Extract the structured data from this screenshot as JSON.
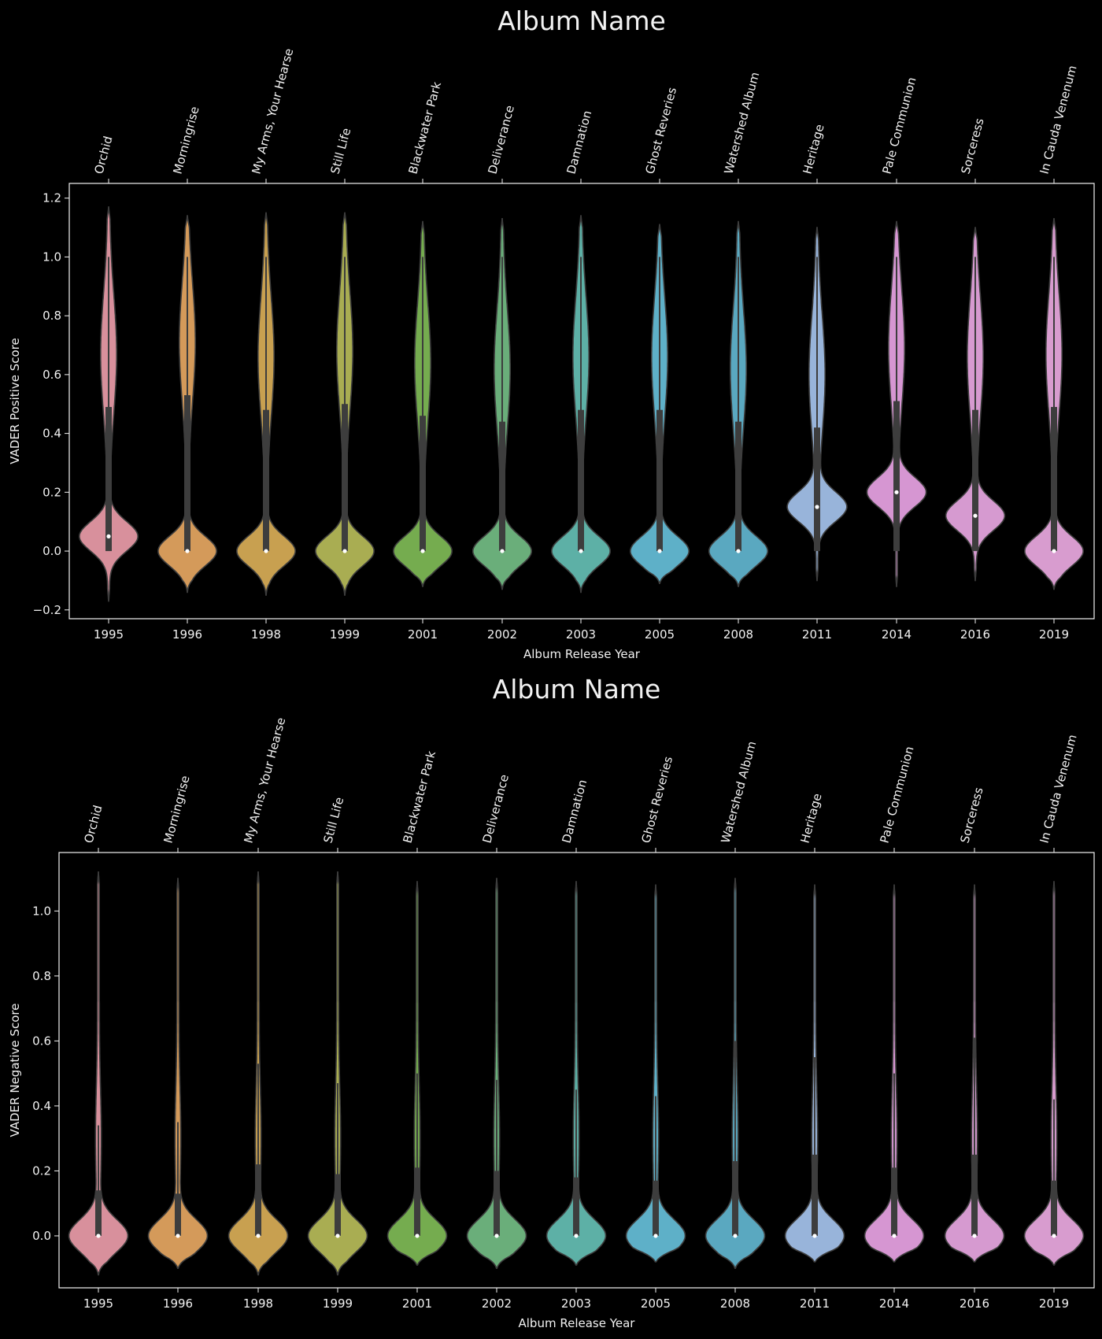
{
  "chart_data": [
    {
      "type": "violin",
      "title": "Album Name",
      "xlabel": "Album Release Year",
      "ylabel": "VADER Positive Score",
      "ylim": [
        -0.23,
        1.25
      ],
      "yticks": [
        -0.2,
        0.0,
        0.2,
        0.4,
        0.6,
        0.8,
        1.0,
        1.2
      ],
      "ytick_labels": [
        "−0.2",
        "0.0",
        "0.2",
        "0.4",
        "0.6",
        "0.8",
        "1.0",
        "1.2"
      ],
      "categories": [
        "1995",
        "1996",
        "1998",
        "1999",
        "2001",
        "2002",
        "2003",
        "2005",
        "2008",
        "2011",
        "2014",
        "2016",
        "2019"
      ],
      "top_labels": [
        "Orchid",
        "Morningrise",
        "My Arms, Your Hearse",
        "Still Life",
        "Blackwater Park",
        "Deliverance",
        "Damnation",
        "Ghost Reveries",
        "Watershed Album",
        "Heritage",
        "Pale Communion",
        "Sorceress",
        "In Cauda Venenum"
      ],
      "colors": [
        "#d8909c",
        "#d49a5a",
        "#c8a050",
        "#a9ad52",
        "#75ac4f",
        "#6aae7a",
        "#5db0a6",
        "#5eb0c8",
        "#5aa8c0",
        "#98b4da",
        "#d696d2",
        "#d69ad0",
        "#d89ccf"
      ],
      "series": [
        {
          "median": 0.05,
          "q1": 0.0,
          "q3": 0.49,
          "min": -0.17,
          "max": 1.17,
          "whisker": 1.0
        },
        {
          "median": 0.0,
          "q1": 0.0,
          "q3": 0.53,
          "min": -0.14,
          "max": 1.14,
          "whisker": 1.0
        },
        {
          "median": 0.0,
          "q1": 0.0,
          "q3": 0.48,
          "min": -0.15,
          "max": 1.15,
          "whisker": 1.0
        },
        {
          "median": 0.0,
          "q1": 0.0,
          "q3": 0.5,
          "min": -0.15,
          "max": 1.15,
          "whisker": 1.0
        },
        {
          "median": 0.0,
          "q1": 0.0,
          "q3": 0.46,
          "min": -0.12,
          "max": 1.12,
          "whisker": 1.0
        },
        {
          "median": 0.0,
          "q1": 0.0,
          "q3": 0.44,
          "min": -0.13,
          "max": 1.13,
          "whisker": 1.0
        },
        {
          "median": 0.0,
          "q1": 0.0,
          "q3": 0.48,
          "min": -0.14,
          "max": 1.14,
          "whisker": 1.0
        },
        {
          "median": 0.0,
          "q1": 0.0,
          "q3": 0.48,
          "min": -0.11,
          "max": 1.11,
          "whisker": 1.0
        },
        {
          "median": 0.0,
          "q1": 0.0,
          "q3": 0.44,
          "min": -0.12,
          "max": 1.12,
          "whisker": 1.0
        },
        {
          "median": 0.15,
          "q1": 0.0,
          "q3": 0.42,
          "min": -0.1,
          "max": 1.1,
          "whisker": 1.0
        },
        {
          "median": 0.2,
          "q1": 0.0,
          "q3": 0.51,
          "min": -0.12,
          "max": 1.12,
          "whisker": 1.0
        },
        {
          "median": 0.12,
          "q1": 0.0,
          "q3": 0.48,
          "min": -0.1,
          "max": 1.1,
          "whisker": 1.0
        },
        {
          "median": 0.0,
          "q1": 0.0,
          "q3": 0.49,
          "min": -0.13,
          "max": 1.13,
          "whisker": 1.0
        }
      ]
    },
    {
      "type": "violin",
      "title": "Album Name",
      "xlabel": "Album Release Year",
      "ylabel": "VADER Negative Score",
      "ylim": [
        -0.16,
        1.18
      ],
      "yticks": [
        0.0,
        0.2,
        0.4,
        0.6,
        0.8,
        1.0
      ],
      "ytick_labels": [
        "0.0",
        "0.2",
        "0.4",
        "0.6",
        "0.8",
        "1.0"
      ],
      "categories": [
        "1995",
        "1996",
        "1998",
        "1999",
        "2001",
        "2002",
        "2003",
        "2005",
        "2008",
        "2011",
        "2014",
        "2016",
        "2019"
      ],
      "top_labels": [
        "Orchid",
        "Morningrise",
        "My Arms, Your Hearse",
        "Still Life",
        "Blackwater Park",
        "Deliverance",
        "Damnation",
        "Ghost Reveries",
        "Watershed Album",
        "Heritage",
        "Pale Communion",
        "Sorceress",
        "In Cauda Venenum"
      ],
      "colors": [
        "#d8909c",
        "#d49a5a",
        "#c8a050",
        "#a9ad52",
        "#75ac4f",
        "#6aae7a",
        "#5db0a6",
        "#5eb0c8",
        "#5aa8c0",
        "#98b4da",
        "#d696d2",
        "#d69ad0",
        "#d89ccf"
      ],
      "series": [
        {
          "median": 0.0,
          "q1": 0.0,
          "q3": 0.14,
          "min": -0.12,
          "max": 1.12,
          "whisker": 0.34
        },
        {
          "median": 0.0,
          "q1": 0.0,
          "q3": 0.13,
          "min": -0.1,
          "max": 1.1,
          "whisker": 0.35
        },
        {
          "median": 0.0,
          "q1": 0.0,
          "q3": 0.22,
          "min": -0.12,
          "max": 1.12,
          "whisker": 0.53
        },
        {
          "median": 0.0,
          "q1": 0.0,
          "q3": 0.19,
          "min": -0.12,
          "max": 1.12,
          "whisker": 0.47
        },
        {
          "median": 0.0,
          "q1": 0.0,
          "q3": 0.21,
          "min": -0.09,
          "max": 1.09,
          "whisker": 0.5
        },
        {
          "median": 0.0,
          "q1": 0.0,
          "q3": 0.2,
          "min": -0.1,
          "max": 1.1,
          "whisker": 0.48
        },
        {
          "median": 0.0,
          "q1": 0.0,
          "q3": 0.18,
          "min": -0.09,
          "max": 1.09,
          "whisker": 0.45
        },
        {
          "median": 0.0,
          "q1": 0.0,
          "q3": 0.17,
          "min": -0.08,
          "max": 1.08,
          "whisker": 0.43
        },
        {
          "median": 0.0,
          "q1": 0.0,
          "q3": 0.23,
          "min": -0.1,
          "max": 1.1,
          "whisker": 0.6
        },
        {
          "median": 0.0,
          "q1": 0.0,
          "q3": 0.25,
          "min": -0.08,
          "max": 1.08,
          "whisker": 0.55
        },
        {
          "median": 0.0,
          "q1": 0.0,
          "q3": 0.21,
          "min": -0.08,
          "max": 1.08,
          "whisker": 0.5
        },
        {
          "median": 0.0,
          "q1": 0.0,
          "q3": 0.25,
          "min": -0.08,
          "max": 1.08,
          "whisker": 0.61
        },
        {
          "median": 0.0,
          "q1": 0.0,
          "q3": 0.17,
          "min": -0.09,
          "max": 1.09,
          "whisker": 0.42
        }
      ]
    }
  ]
}
